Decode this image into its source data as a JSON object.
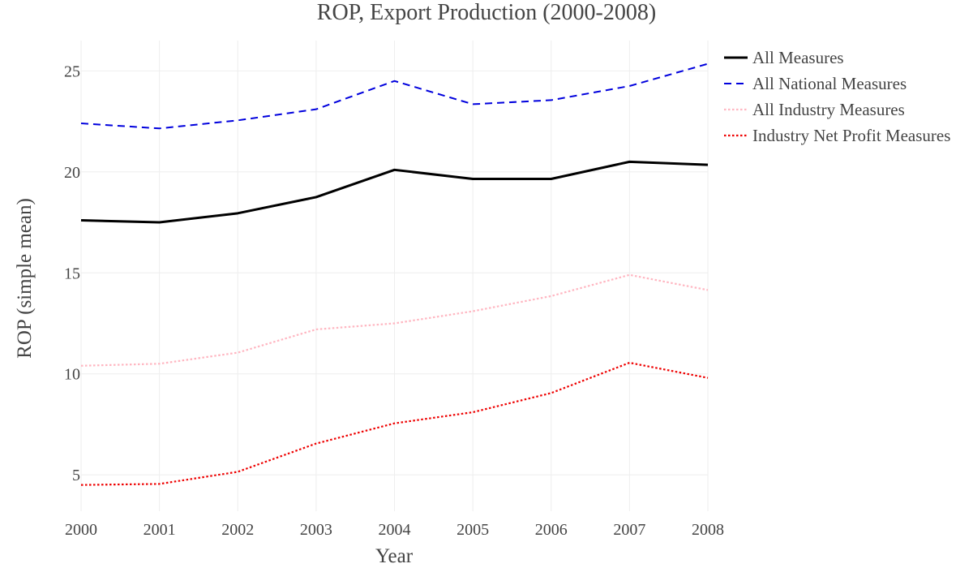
{
  "chart_data": {
    "type": "line",
    "title": "ROP, Export Production (2000-2008)",
    "xlabel": "Year",
    "ylabel": "ROP (simple mean)",
    "x": [
      2000,
      2001,
      2002,
      2003,
      2004,
      2005,
      2006,
      2007,
      2008
    ],
    "xlim": [
      2000,
      2008
    ],
    "ylim": [
      3.2,
      26.5
    ],
    "xticks": [
      2000,
      2001,
      2002,
      2003,
      2004,
      2005,
      2006,
      2007,
      2008
    ],
    "yticks": [
      5,
      10,
      15,
      20,
      25
    ],
    "grid": true,
    "legend_position": "top-right",
    "series": [
      {
        "name": "All Measures",
        "values": [
          17.6,
          17.5,
          17.95,
          18.75,
          20.1,
          19.65,
          19.65,
          20.5,
          20.35
        ],
        "color": "#000000",
        "dash": "solid"
      },
      {
        "name": "All National Measures",
        "values": [
          22.4,
          22.15,
          22.55,
          23.1,
          24.5,
          23.35,
          23.55,
          24.25,
          25.35
        ],
        "color": "#0000dd",
        "dash": "dashed"
      },
      {
        "name": "All Industry Measures",
        "values": [
          10.4,
          10.5,
          11.05,
          12.2,
          12.5,
          13.1,
          13.85,
          14.9,
          14.15
        ],
        "color": "#ffb6c1",
        "dash": "dotted"
      },
      {
        "name": "Industry Net Profit Measures",
        "values": [
          4.5,
          4.55,
          5.15,
          6.55,
          7.55,
          8.1,
          9.05,
          10.55,
          9.8
        ],
        "color": "#ee0000",
        "dash": "dotted"
      }
    ]
  }
}
